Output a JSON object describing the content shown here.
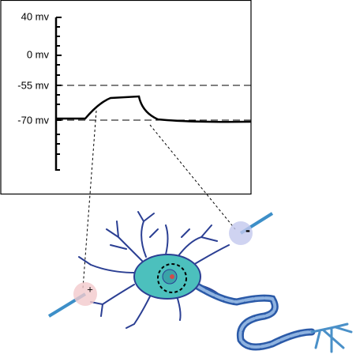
{
  "axis_labels": [
    "40 mv",
    "0 mv",
    "-55 mv",
    "-70 mv"
  ],
  "electrode_signs": {
    "positive": "+",
    "negative": "-"
  }
}
